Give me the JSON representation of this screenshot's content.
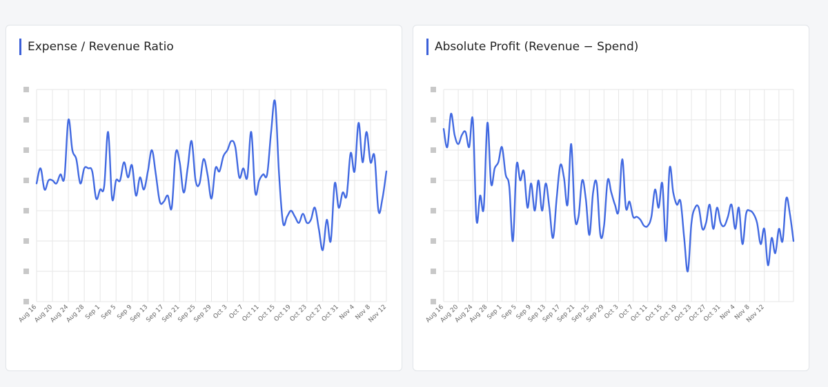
{
  "theme": {
    "accent": "#3b5fd8",
    "line_color": "#4169e1",
    "grid_color": "#e6e6e6"
  },
  "chart_data": [
    {
      "type": "line",
      "title": "Expense / Revenue Ratio",
      "xlabel": "",
      "ylabel": "",
      "y_tick_labels_visible": false,
      "ylim": [
        0,
        7
      ],
      "x_tick_labels": [
        "Aug 16",
        "Aug 20",
        "Aug 24",
        "Aug 28",
        "Sep 1",
        "Sep 5",
        "Sep 9",
        "Sep 13",
        "Sep 17",
        "Sep 21",
        "Sep 25",
        "Sep 29",
        "Oct 3",
        "Oct 7",
        "Oct 11",
        "Oct 15",
        "Oct 19",
        "Oct 23",
        "Oct 27",
        "Oct 31",
        "Nov 4",
        "Nov 8",
        "Nov 12"
      ],
      "x_tick_every": 4,
      "series": [
        {
          "name": "Expense / Revenue Ratio",
          "values": [
            3.9,
            4.4,
            3.7,
            4.0,
            4.0,
            3.9,
            4.2,
            4.1,
            6.0,
            5.0,
            4.7,
            3.9,
            4.4,
            4.4,
            4.3,
            3.4,
            3.7,
            3.8,
            5.6,
            3.4,
            4.0,
            4.0,
            4.6,
            4.1,
            4.5,
            3.5,
            4.1,
            3.7,
            4.3,
            5.0,
            4.2,
            3.3,
            3.3,
            3.5,
            3.1,
            4.9,
            4.6,
            3.6,
            4.4,
            5.3,
            4.0,
            3.9,
            4.7,
            4.2,
            3.4,
            4.4,
            4.3,
            4.8,
            5.0,
            5.3,
            5.1,
            4.1,
            4.4,
            4.1,
            5.6,
            3.6,
            4.0,
            4.2,
            4.2,
            5.6,
            6.6,
            4.2,
            2.6,
            2.8,
            3.0,
            2.8,
            2.6,
            2.9,
            2.6,
            2.7,
            3.1,
            2.4,
            1.7,
            2.7,
            2.0,
            3.9,
            3.1,
            3.6,
            3.5,
            4.9,
            4.3,
            5.9,
            4.6,
            5.6,
            4.6,
            4.8,
            3.0,
            3.4,
            4.3
          ]
        }
      ]
    },
    {
      "type": "line",
      "title": "Absolute Profit (Revenue − Spend)",
      "xlabel": "",
      "ylabel": "",
      "y_tick_labels_visible": false,
      "ylim": [
        0,
        7
      ],
      "x_tick_labels": [
        "Aug 16",
        "Aug 20",
        "Aug 24",
        "Aug 28",
        "Sep 1",
        "Sep 5",
        "Sep 9",
        "Sep 13",
        "Sep 17",
        "Sep 21",
        "Sep 25",
        "Sep 29",
        "Oct 3",
        "Oct 7",
        "Oct 11",
        "Oct 15",
        "Oct 19",
        "Oct 23",
        "Oct 27",
        "Oct 31",
        "Nov 4",
        "Nov 8",
        "Nov 12"
      ],
      "x_tick_every": 4,
      "series": [
        {
          "name": "Absolute Profit (Revenue − Spend)",
          "values": [
            5.7,
            5.1,
            6.2,
            5.5,
            5.2,
            5.5,
            5.6,
            5.1,
            6.0,
            2.7,
            3.5,
            3.1,
            5.9,
            3.9,
            4.4,
            4.6,
            5.1,
            4.2,
            3.8,
            2.0,
            4.5,
            4.0,
            4.3,
            3.1,
            3.9,
            3.0,
            4.0,
            3.0,
            3.9,
            3.1,
            2.1,
            3.4,
            4.5,
            4.1,
            3.2,
            5.2,
            2.8,
            2.8,
            4.0,
            3.4,
            2.2,
            3.6,
            3.9,
            2.2,
            2.5,
            4.0,
            3.6,
            3.2,
            3.0,
            4.7,
            3.1,
            3.3,
            2.8,
            2.8,
            2.7,
            2.5,
            2.5,
            2.8,
            3.7,
            3.1,
            3.9,
            2.0,
            4.4,
            3.6,
            3.2,
            3.3,
            2.1,
            1.0,
            2.6,
            3.1,
            3.1,
            2.4,
            2.6,
            3.2,
            2.4,
            3.1,
            2.6,
            2.5,
            2.8,
            3.2,
            2.4,
            3.1,
            1.9,
            2.9,
            3.0,
            2.9,
            2.6,
            1.9,
            2.4,
            1.2,
            2.1,
            1.6,
            2.4,
            2.0,
            3.4,
            2.9,
            2.0
          ]
        }
      ]
    }
  ]
}
